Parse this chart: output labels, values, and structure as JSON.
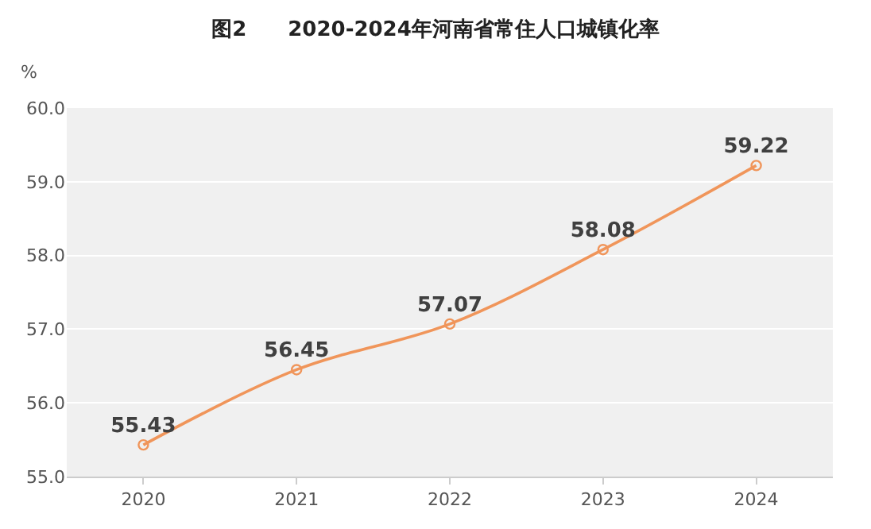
{
  "chart_data": {
    "type": "line",
    "title": "图2　　2020-2024年河南省常住人口城镇化率",
    "ylabel": "%",
    "categories": [
      "2020",
      "2021",
      "2022",
      "2023",
      "2024"
    ],
    "series": [
      {
        "color": "#f0955a",
        "values": [
          55.43,
          56.45,
          57.07,
          58.08,
          59.22
        ]
      }
    ],
    "ylim": [
      55,
      60
    ],
    "yticks": [
      {
        "value": 55,
        "label": "55.0"
      },
      {
        "value": 56,
        "label": "56.0"
      },
      {
        "value": 57,
        "label": "57.0"
      },
      {
        "value": 58,
        "label": "58.0"
      },
      {
        "value": 59,
        "label": "59.0"
      },
      {
        "value": 60,
        "label": "60.0"
      }
    ],
    "grid": "y",
    "marker": "circle",
    "line_style": "solid",
    "data_labels": true
  }
}
